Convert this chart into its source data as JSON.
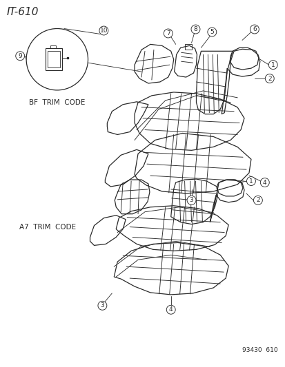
{
  "title": "IT-610",
  "bg_color": "#ffffff",
  "line_color": "#2a2a2a",
  "bf_trim_label": "BF  TRIM  CODE",
  "a7_trim_label": "A7  TRIM  CODE",
  "part_number": "93430  610",
  "font_size_title": 11,
  "font_size_label": 7.5,
  "font_size_callout": 6.5,
  "font_size_partnumber": 6.5,
  "lw_main": 0.9,
  "lw_seam": 0.65,
  "lw_callout": 0.6
}
